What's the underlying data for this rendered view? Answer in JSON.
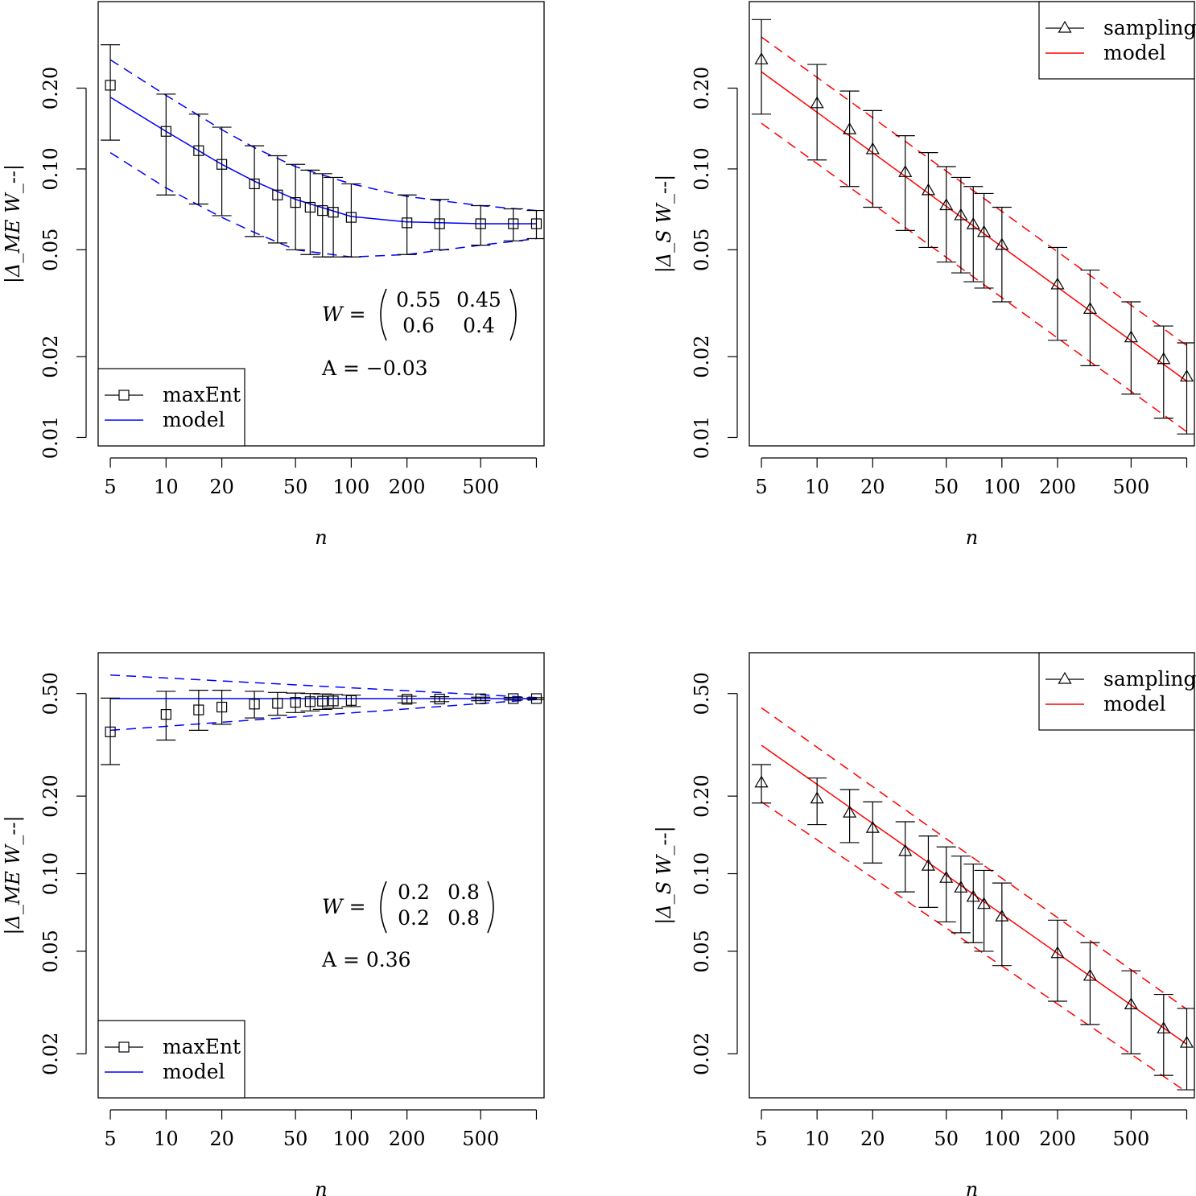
{
  "chart_data": [
    {
      "id": "top-left",
      "type": "scatter",
      "xscale": "log",
      "yscale": "log",
      "xlabel": "n",
      "ylabel": "|Δ_ME W_--|",
      "xlim": [
        4.3,
        1100
      ],
      "ylim": [
        0.0093,
        0.42
      ],
      "xticks": [
        5,
        10,
        20,
        50,
        100,
        200,
        500,
        1000
      ],
      "xtick_labels": [
        "5",
        "10",
        "20",
        "50",
        "100",
        "200",
        "500",
        ""
      ],
      "yticks": [
        0.01,
        0.02,
        0.05,
        0.1,
        0.2
      ],
      "ytick_labels": [
        "0.01",
        "0.02",
        "0.05",
        "0.10",
        "0.20"
      ],
      "marker": "square",
      "legend_position": "bottom-left",
      "legend": [
        {
          "label": "maxEnt",
          "kind": "marker",
          "color": "#000000"
        },
        {
          "label": "model",
          "kind": "line",
          "color": "#0000ff"
        }
      ],
      "annotation": {
        "lhs": "W =",
        "matrix": [
          [
            "0.55",
            "0.45"
          ],
          [
            "0.6",
            "0.4"
          ]
        ],
        "a_label": "A = −0.03"
      },
      "model_color": "#0000ff",
      "x": [
        5,
        10,
        15,
        20,
        30,
        40,
        50,
        60,
        70,
        80,
        100,
        200,
        300,
        500,
        750,
        1000
      ],
      "y": [
        0.205,
        0.138,
        0.117,
        0.104,
        0.088,
        0.08,
        0.075,
        0.072,
        0.07,
        0.069,
        0.066,
        0.063,
        0.0625,
        0.0625,
        0.0625,
        0.0625
      ],
      "err_upper": [
        0.29,
        0.19,
        0.16,
        0.143,
        0.122,
        0.112,
        0.104,
        0.099,
        0.096,
        0.093,
        0.088,
        0.08,
        0.077,
        0.073,
        0.071,
        0.07
      ],
      "err_lower": [
        0.128,
        0.08,
        0.074,
        0.067,
        0.056,
        0.053,
        0.05,
        0.048,
        0.047,
        0.047,
        0.047,
        0.048,
        0.05,
        0.052,
        0.054,
        0.055
      ],
      "model_x": [
        5,
        10,
        20,
        30,
        50,
        100,
        200,
        500,
        1000
      ],
      "model_y": [
        0.185,
        0.138,
        0.104,
        0.09,
        0.077,
        0.0665,
        0.0635,
        0.0625,
        0.0625
      ],
      "model_upper": [
        0.255,
        0.188,
        0.14,
        0.12,
        0.102,
        0.088,
        0.079,
        0.073,
        0.07
      ],
      "model_lower": [
        0.115,
        0.085,
        0.066,
        0.058,
        0.05,
        0.047,
        0.048,
        0.052,
        0.055
      ]
    },
    {
      "id": "top-right",
      "type": "scatter",
      "xscale": "log",
      "yscale": "log",
      "xlabel": "n",
      "ylabel": "|Δ_S W_--|",
      "xlim": [
        4.3,
        1100
      ],
      "ylim": [
        0.0093,
        0.42
      ],
      "xticks": [
        5,
        10,
        20,
        50,
        100,
        200,
        500,
        1000
      ],
      "xtick_labels": [
        "5",
        "10",
        "20",
        "50",
        "100",
        "200",
        "500",
        ""
      ],
      "yticks": [
        0.01,
        0.02,
        0.05,
        0.1,
        0.2
      ],
      "ytick_labels": [
        "0.01",
        "0.02",
        "0.05",
        "0.10",
        "0.20"
      ],
      "marker": "triangle",
      "legend_position": "top-right",
      "legend": [
        {
          "label": "sampling",
          "kind": "marker",
          "color": "#000000"
        },
        {
          "label": "model",
          "kind": "line",
          "color": "#ff0000"
        }
      ],
      "model_color": "#ff0000",
      "x": [
        5,
        10,
        15,
        20,
        30,
        40,
        50,
        60,
        70,
        80,
        100,
        200,
        300,
        500,
        750,
        1000
      ],
      "y": [
        0.255,
        0.175,
        0.14,
        0.118,
        0.097,
        0.083,
        0.073,
        0.067,
        0.062,
        0.058,
        0.052,
        0.037,
        0.03,
        0.0235,
        0.0195,
        0.0168
      ],
      "err_upper": [
        0.36,
        0.245,
        0.195,
        0.165,
        0.133,
        0.115,
        0.102,
        0.093,
        0.086,
        0.081,
        0.072,
        0.051,
        0.042,
        0.032,
        0.026,
        0.0225
      ],
      "err_lower": [
        0.16,
        0.108,
        0.086,
        0.072,
        0.059,
        0.051,
        0.045,
        0.041,
        0.038,
        0.036,
        0.032,
        0.023,
        0.0185,
        0.0145,
        0.0118,
        0.0103
      ],
      "model_x": [
        5,
        1000
      ],
      "model_y": [
        0.23,
        0.0162
      ],
      "model_upper": [
        0.31,
        0.022
      ],
      "model_lower": [
        0.148,
        0.0105
      ]
    },
    {
      "id": "bottom-left",
      "type": "scatter",
      "xscale": "log",
      "yscale": "log",
      "xlabel": "n",
      "ylabel": "|Δ_ME W_--|",
      "xlim": [
        4.3,
        1100
      ],
      "ylim": [
        0.0135,
        0.72
      ],
      "xticks": [
        5,
        10,
        20,
        50,
        100,
        200,
        500,
        1000
      ],
      "xtick_labels": [
        "5",
        "10",
        "20",
        "50",
        "100",
        "200",
        "500",
        ""
      ],
      "yticks": [
        0.02,
        0.05,
        0.1,
        0.2,
        0.5
      ],
      "ytick_labels": [
        "0.02",
        "0.05",
        "0.10",
        "0.20",
        "0.50"
      ],
      "marker": "square",
      "legend_position": "bottom-left",
      "legend": [
        {
          "label": "maxEnt",
          "kind": "marker",
          "color": "#000000"
        },
        {
          "label": "model",
          "kind": "line",
          "color": "#0000ff"
        }
      ],
      "annotation": {
        "lhs": "W =",
        "matrix": [
          [
            "0.2",
            "0.8"
          ],
          [
            "0.2",
            "0.8"
          ]
        ],
        "a_label": "A = 0.36"
      },
      "model_color": "#0000ff",
      "x": [
        5,
        10,
        15,
        20,
        30,
        40,
        50,
        60,
        70,
        80,
        100,
        200,
        300,
        500,
        750,
        1000
      ],
      "y": [
        0.355,
        0.415,
        0.432,
        0.443,
        0.455,
        0.458,
        0.462,
        0.465,
        0.467,
        0.468,
        0.47,
        0.475,
        0.476,
        0.477,
        0.478,
        0.478
      ],
      "err_upper": [
        0.48,
        0.51,
        0.515,
        0.515,
        0.51,
        0.505,
        0.502,
        0.5,
        0.498,
        0.496,
        0.493,
        0.488,
        0.486,
        0.484,
        0.483,
        0.482
      ],
      "err_lower": [
        0.265,
        0.33,
        0.36,
        0.38,
        0.402,
        0.412,
        0.422,
        0.428,
        0.434,
        0.438,
        0.445,
        0.46,
        0.465,
        0.469,
        0.472,
        0.474
      ],
      "model_x": [
        5,
        1000
      ],
      "model_y": [
        0.478,
        0.478
      ],
      "model_upper": [
        0.59,
        0.482
      ],
      "model_lower": [
        0.36,
        0.474
      ]
    },
    {
      "id": "bottom-right",
      "type": "scatter",
      "xscale": "log",
      "yscale": "log",
      "xlabel": "n",
      "ylabel": "|Δ_S W_--|",
      "xlim": [
        4.3,
        1100
      ],
      "ylim": [
        0.0135,
        0.72
      ],
      "xticks": [
        5,
        10,
        20,
        50,
        100,
        200,
        500,
        1000
      ],
      "xtick_labels": [
        "5",
        "10",
        "20",
        "50",
        "100",
        "200",
        "500",
        ""
      ],
      "yticks": [
        0.02,
        0.05,
        0.1,
        0.2,
        0.5
      ],
      "ytick_labels": [
        "0.02",
        "0.05",
        "0.10",
        "0.20",
        "0.50"
      ],
      "marker": "triangle",
      "legend_position": "top-right",
      "legend": [
        {
          "label": "sampling",
          "kind": "marker",
          "color": "#000000"
        },
        {
          "label": "model",
          "kind": "line",
          "color": "#ff0000"
        }
      ],
      "model_color": "#ff0000",
      "x": [
        5,
        10,
        15,
        20,
        30,
        40,
        50,
        60,
        70,
        80,
        100,
        200,
        300,
        500,
        750,
        1000
      ],
      "y": [
        0.225,
        0.195,
        0.172,
        0.15,
        0.122,
        0.107,
        0.096,
        0.088,
        0.081,
        0.076,
        0.068,
        0.049,
        0.04,
        0.031,
        0.025,
        0.022
      ],
      "err_upper": [
        0.265,
        0.235,
        0.212,
        0.19,
        0.159,
        0.14,
        0.127,
        0.117,
        0.109,
        0.103,
        0.092,
        0.066,
        0.054,
        0.042,
        0.034,
        0.03
      ],
      "err_lower": [
        0.188,
        0.155,
        0.132,
        0.11,
        0.085,
        0.074,
        0.065,
        0.059,
        0.054,
        0.05,
        0.044,
        0.032,
        0.026,
        0.02,
        0.0165,
        0.0145
      ],
      "model_x": [
        5,
        1000
      ],
      "model_y": [
        0.315,
        0.0218
      ],
      "model_upper": [
        0.44,
        0.0298
      ],
      "model_lower": [
        0.19,
        0.0142
      ]
    }
  ]
}
